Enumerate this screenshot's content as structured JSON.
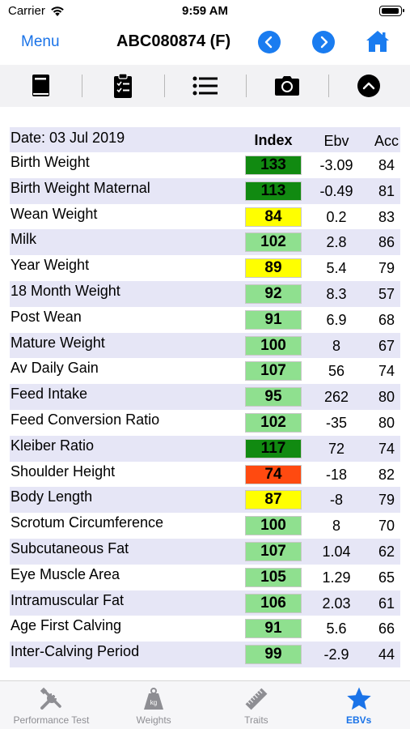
{
  "status_bar": {
    "carrier": "Carrier",
    "time": "9:59 AM"
  },
  "nav": {
    "menu_label": "Menu",
    "title": "ABC080874 (F)"
  },
  "colors": {
    "accent": "#1a73e8",
    "dark_green": "#118a11",
    "light_green": "#8fe08f",
    "yellow": "#ffff00",
    "orange_red": "#ff4a10",
    "row_shade": "#e6e6f6"
  },
  "toolbar": {
    "icons": [
      "book-icon",
      "clipboard-icon",
      "list-icon",
      "camera-icon",
      "chevron-up-icon"
    ]
  },
  "table": {
    "date_label": "Date: 03 Jul 2019",
    "col_index": "Index",
    "col_ebv": "Ebv",
    "col_acc": "Acc",
    "rows": [
      {
        "trait": "Birth Weight",
        "index": "133",
        "ebv": "-3.09",
        "acc": "84",
        "color": "dark_green"
      },
      {
        "trait": "Birth Weight Maternal",
        "index": "113",
        "ebv": "-0.49",
        "acc": "81",
        "color": "dark_green"
      },
      {
        "trait": "Wean Weight",
        "index": "84",
        "ebv": "0.2",
        "acc": "83",
        "color": "yellow"
      },
      {
        "trait": "Milk",
        "index": "102",
        "ebv": "2.8",
        "acc": "86",
        "color": "light_green"
      },
      {
        "trait": "Year Weight",
        "index": "89",
        "ebv": "5.4",
        "acc": "79",
        "color": "yellow"
      },
      {
        "trait": "18 Month Weight",
        "index": "92",
        "ebv": "8.3",
        "acc": "57",
        "color": "light_green"
      },
      {
        "trait": "Post Wean",
        "index": "91",
        "ebv": "6.9",
        "acc": "68",
        "color": "light_green"
      },
      {
        "trait": "Mature Weight",
        "index": "100",
        "ebv": "8",
        "acc": "67",
        "color": "light_green"
      },
      {
        "trait": "Av Daily Gain",
        "index": "107",
        "ebv": "56",
        "acc": "74",
        "color": "light_green"
      },
      {
        "trait": "Feed Intake",
        "index": "95",
        "ebv": "262",
        "acc": "80",
        "color": "light_green"
      },
      {
        "trait": "Feed Conversion Ratio",
        "index": "102",
        "ebv": "-35",
        "acc": "80",
        "color": "light_green"
      },
      {
        "trait": "Kleiber Ratio",
        "index": "117",
        "ebv": "72",
        "acc": "74",
        "color": "dark_green"
      },
      {
        "trait": "Shoulder Height",
        "index": "74",
        "ebv": "-18",
        "acc": "82",
        "color": "orange_red"
      },
      {
        "trait": "Body Length",
        "index": "87",
        "ebv": "-8",
        "acc": "79",
        "color": "yellow"
      },
      {
        "trait": "Scrotum Circumference",
        "index": "100",
        "ebv": "8",
        "acc": "70",
        "color": "light_green"
      },
      {
        "trait": "Subcutaneous Fat",
        "index": "107",
        "ebv": "1.04",
        "acc": "62",
        "color": "light_green"
      },
      {
        "trait": "Eye Muscle Area",
        "index": "105",
        "ebv": "1.29",
        "acc": "65",
        "color": "light_green"
      },
      {
        "trait": "Intramuscular Fat",
        "index": "106",
        "ebv": "2.03",
        "acc": "61",
        "color": "light_green"
      },
      {
        "trait": "Age First Calving",
        "index": "91",
        "ebv": "5.6",
        "acc": "66",
        "color": "light_green"
      },
      {
        "trait": "Inter-Calving Period",
        "index": "99",
        "ebv": "-2.9",
        "acc": "44",
        "color": "light_green"
      }
    ]
  },
  "tabs": [
    {
      "label": "Performance Test",
      "icon": "tools-icon",
      "active": false
    },
    {
      "label": "Weights",
      "icon": "weight-icon",
      "weight_glyph": "kg",
      "active": false
    },
    {
      "label": "Traits",
      "icon": "ruler-icon",
      "active": false
    },
    {
      "label": "EBVs",
      "icon": "star-icon",
      "active": true
    }
  ]
}
